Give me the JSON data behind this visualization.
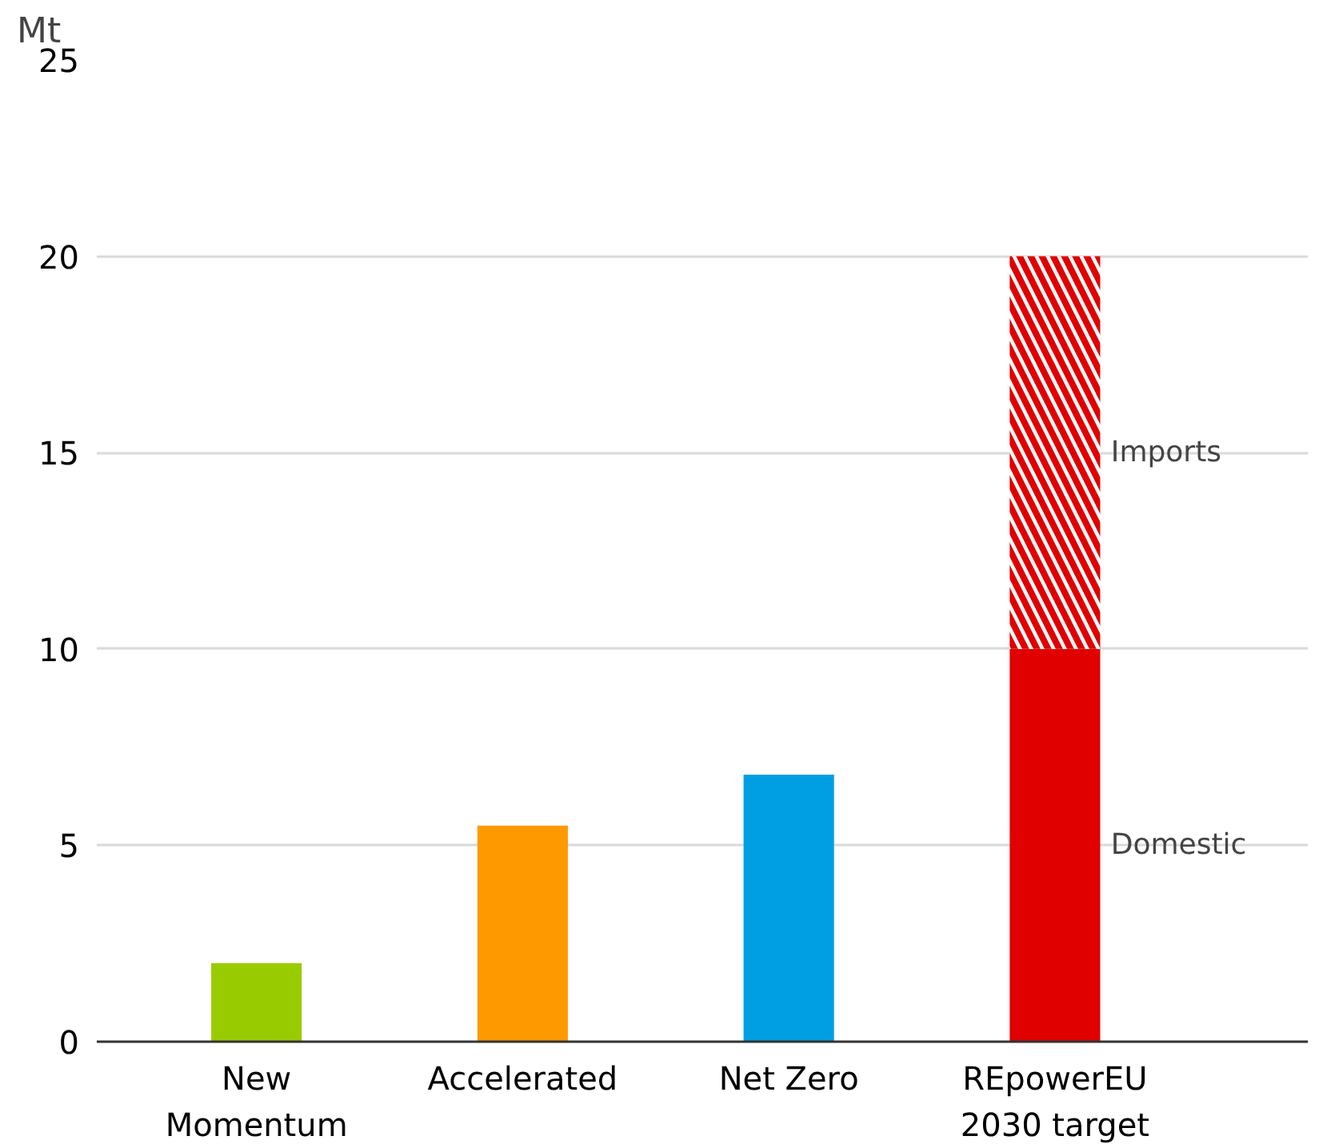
{
  "chart_data": {
    "type": "bar",
    "stacked": true,
    "ylabel": "Mt",
    "categories": [
      "New\nMomentum",
      "Accelerated",
      "Net Zero",
      "REpowerEU\n2030 target"
    ],
    "series": [
      {
        "name": "Domestic",
        "colors": [
          "#99cc00",
          "#ff9900",
          "#009fe3",
          "#e00000"
        ],
        "values": [
          2.0,
          5.5,
          6.8,
          10
        ]
      },
      {
        "name": "Imports",
        "color": "#e00000",
        "values": [
          null,
          null,
          null,
          10
        ]
      }
    ],
    "ylim": [
      0,
      25
    ],
    "yticks": [
      0,
      5,
      10,
      15,
      20,
      25
    ],
    "grid": "y"
  }
}
